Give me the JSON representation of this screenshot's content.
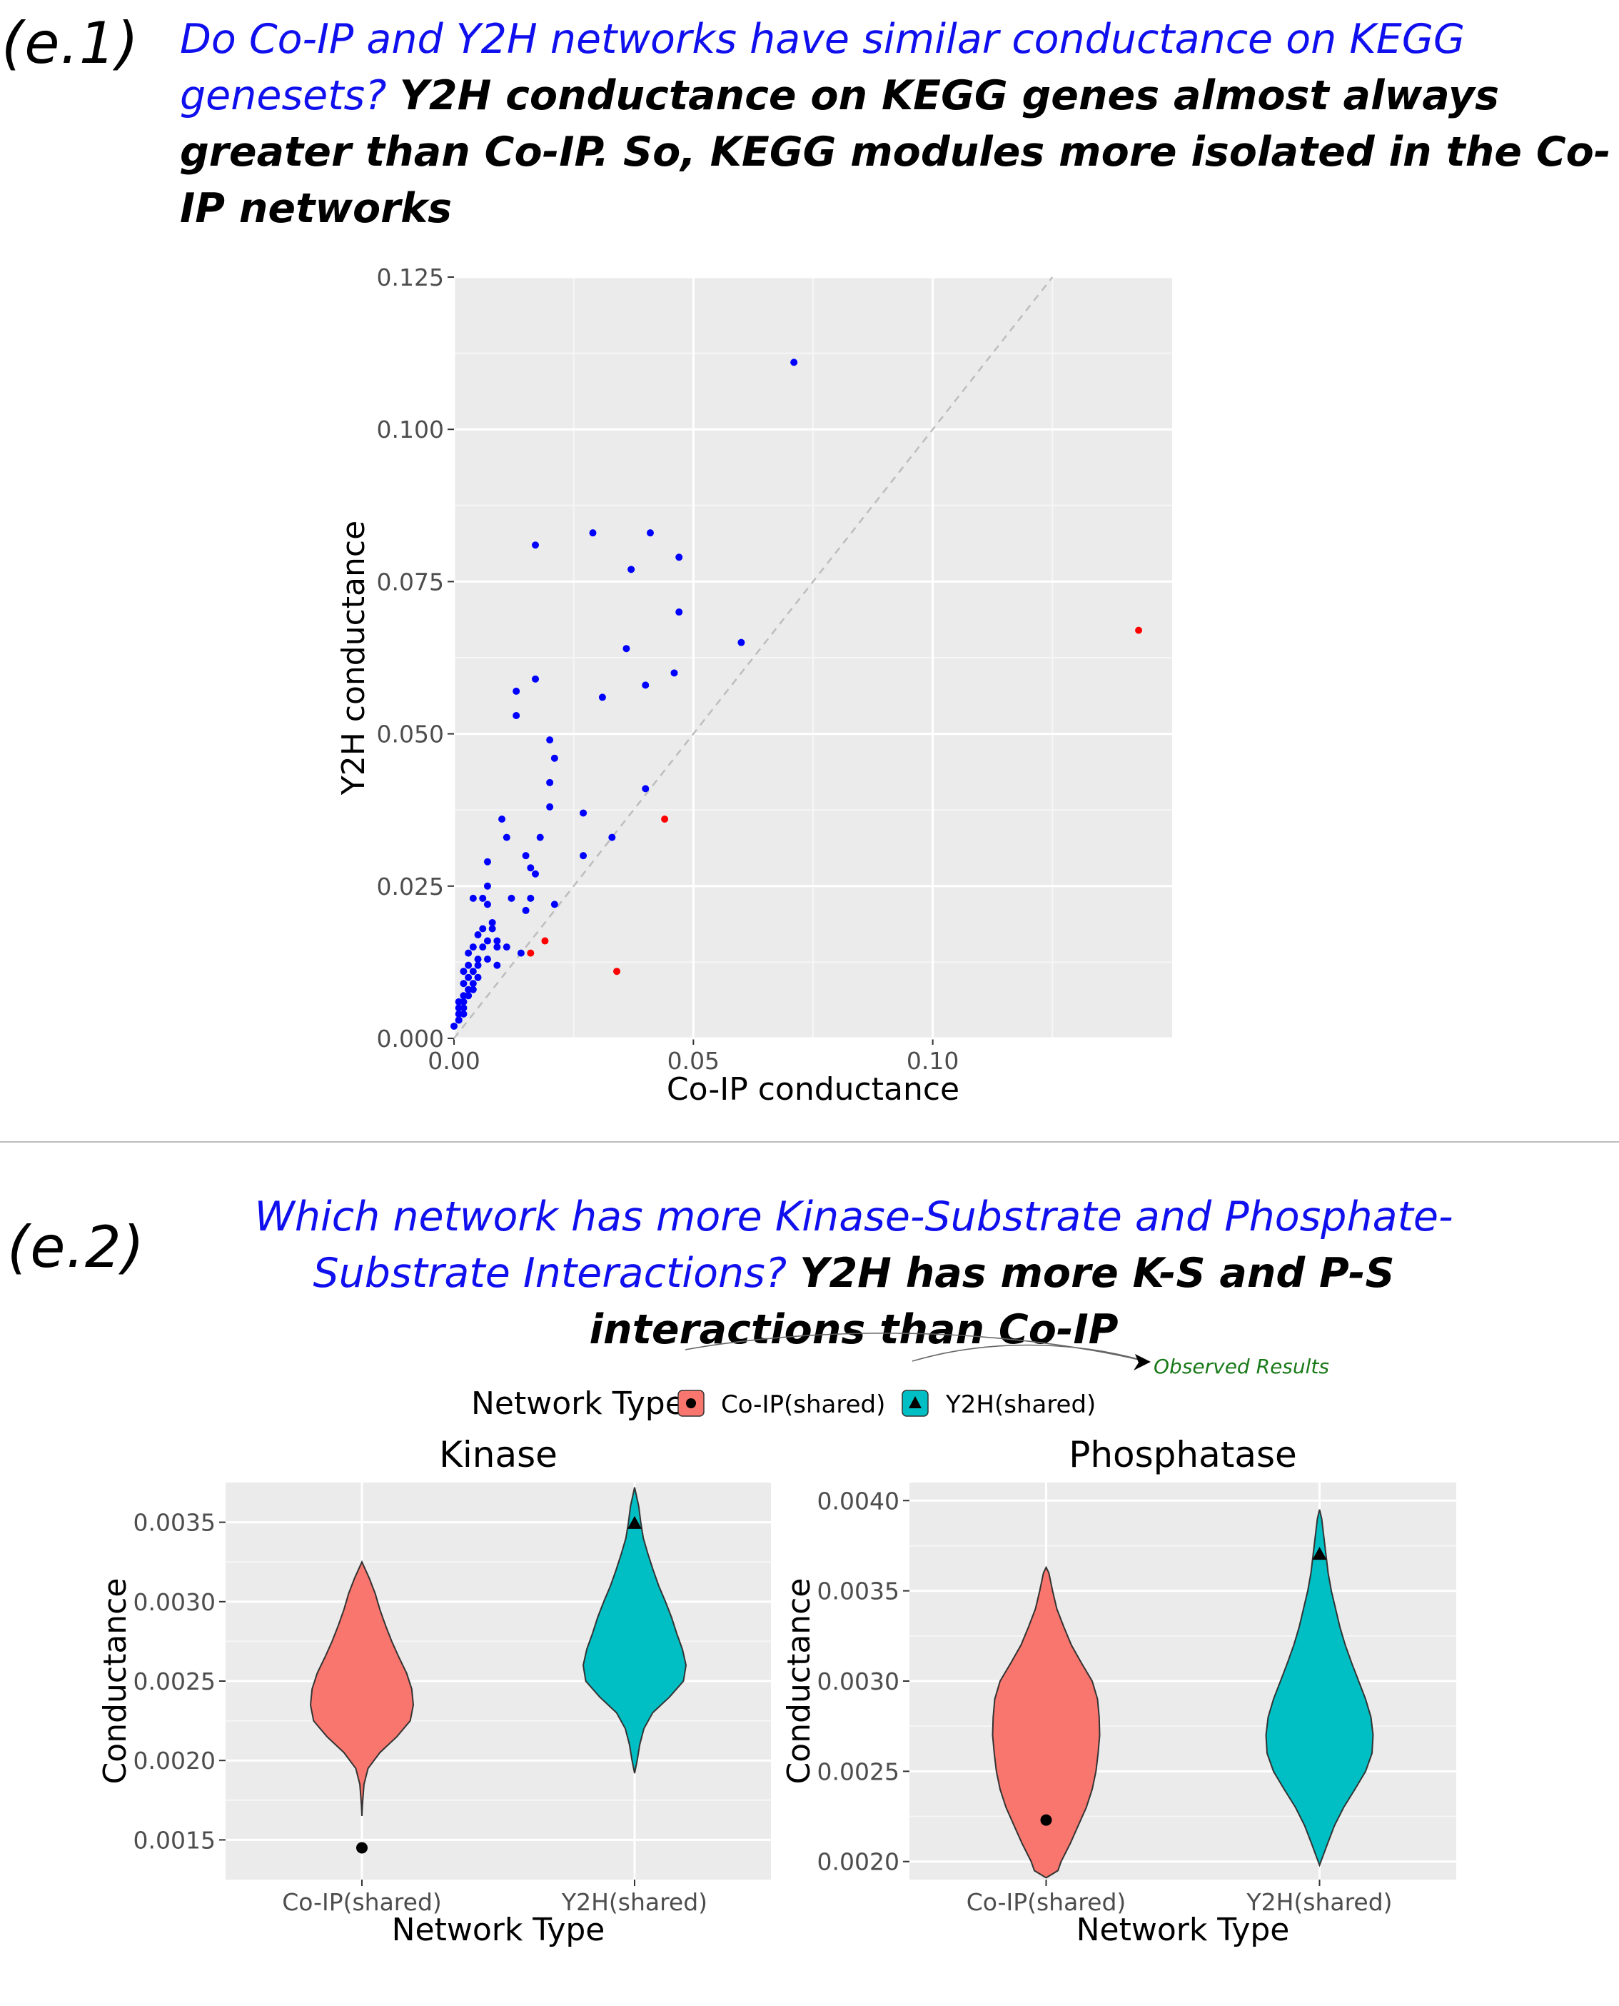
{
  "e1": {
    "label": "(e.1)",
    "question": "Do  Co-IP and Y2H networks have similar conductance on KEGG genesets?",
    "answer": "Y2H conductance on KEGG genes almost always greater than Co-IP. So, KEGG modules  more  isolated in the Co-IP networks"
  },
  "e2": {
    "label": "(e.2)",
    "question": "Which network has more Kinase-Substrate and Phosphate-Substrate Interactions?",
    "answer": "Y2H has more K-S and P-S interactions than Co-IP",
    "annotation": "Observed Results",
    "legend": {
      "title": "Network Type",
      "items": [
        {
          "label": "Co-IP(shared)",
          "color": "#f8766d",
          "marker": "circle"
        },
        {
          "label": "Y2H(shared)",
          "color": "#00bfc4",
          "marker": "triangle"
        }
      ]
    }
  },
  "colors": {
    "above": "#0000ff",
    "below": "#ff0000",
    "panel_bg": "#ebebeb",
    "diag": "#bdbdbd"
  },
  "chart_data": [
    {
      "type": "scatter",
      "xlabel": "Co-IP conductance",
      "ylabel": "Y2H conductance",
      "xlim": [
        0,
        0.15
      ],
      "ylim": [
        0,
        0.125
      ],
      "xticks": [
        0.0,
        0.05,
        0.1
      ],
      "xtick_labels": [
        "0.00",
        "0.05",
        "0.10"
      ],
      "yticks": [
        0.0,
        0.025,
        0.05,
        0.075,
        0.1,
        0.125
      ],
      "ytick_labels": [
        "0.000",
        "0.025",
        "0.050",
        "0.075",
        "0.100",
        "0.125"
      ],
      "reference_line": "y = x",
      "points": [
        [
          0.071,
          0.111,
          "blue"
        ],
        [
          0.143,
          0.067,
          "red"
        ],
        [
          0.029,
          0.083,
          "blue"
        ],
        [
          0.041,
          0.083,
          "blue"
        ],
        [
          0.017,
          0.081,
          "blue"
        ],
        [
          0.047,
          0.079,
          "blue"
        ],
        [
          0.037,
          0.077,
          "blue"
        ],
        [
          0.047,
          0.07,
          "blue"
        ],
        [
          0.06,
          0.065,
          "blue"
        ],
        [
          0.036,
          0.064,
          "blue"
        ],
        [
          0.046,
          0.06,
          "blue"
        ],
        [
          0.017,
          0.059,
          "blue"
        ],
        [
          0.04,
          0.058,
          "blue"
        ],
        [
          0.013,
          0.057,
          "blue"
        ],
        [
          0.031,
          0.056,
          "blue"
        ],
        [
          0.013,
          0.053,
          "blue"
        ],
        [
          0.02,
          0.049,
          "blue"
        ],
        [
          0.021,
          0.046,
          "blue"
        ],
        [
          0.02,
          0.042,
          "blue"
        ],
        [
          0.04,
          0.041,
          "blue"
        ],
        [
          0.02,
          0.038,
          "blue"
        ],
        [
          0.027,
          0.037,
          "blue"
        ],
        [
          0.044,
          0.036,
          "red"
        ],
        [
          0.01,
          0.036,
          "blue"
        ],
        [
          0.033,
          0.033,
          "blue"
        ],
        [
          0.011,
          0.033,
          "blue"
        ],
        [
          0.018,
          0.033,
          "blue"
        ],
        [
          0.027,
          0.03,
          "blue"
        ],
        [
          0.015,
          0.03,
          "blue"
        ],
        [
          0.007,
          0.029,
          "blue"
        ],
        [
          0.016,
          0.028,
          "blue"
        ],
        [
          0.017,
          0.027,
          "blue"
        ],
        [
          0.007,
          0.025,
          "blue"
        ],
        [
          0.006,
          0.023,
          "blue"
        ],
        [
          0.004,
          0.023,
          "blue"
        ],
        [
          0.012,
          0.023,
          "blue"
        ],
        [
          0.016,
          0.023,
          "blue"
        ],
        [
          0.021,
          0.022,
          "blue"
        ],
        [
          0.007,
          0.022,
          "blue"
        ],
        [
          0.015,
          0.021,
          "blue"
        ],
        [
          0.008,
          0.019,
          "blue"
        ],
        [
          0.008,
          0.018,
          "blue"
        ],
        [
          0.006,
          0.018,
          "blue"
        ],
        [
          0.005,
          0.017,
          "blue"
        ],
        [
          0.007,
          0.016,
          "blue"
        ],
        [
          0.009,
          0.016,
          "blue"
        ],
        [
          0.019,
          0.016,
          "red"
        ],
        [
          0.011,
          0.015,
          "blue"
        ],
        [
          0.004,
          0.015,
          "blue"
        ],
        [
          0.006,
          0.015,
          "blue"
        ],
        [
          0.009,
          0.015,
          "blue"
        ],
        [
          0.014,
          0.014,
          "blue"
        ],
        [
          0.016,
          0.014,
          "red"
        ],
        [
          0.003,
          0.014,
          "blue"
        ],
        [
          0.005,
          0.013,
          "blue"
        ],
        [
          0.007,
          0.013,
          "blue"
        ],
        [
          0.003,
          0.012,
          "blue"
        ],
        [
          0.005,
          0.012,
          "blue"
        ],
        [
          0.009,
          0.012,
          "blue"
        ],
        [
          0.002,
          0.011,
          "blue"
        ],
        [
          0.004,
          0.011,
          "blue"
        ],
        [
          0.034,
          0.011,
          "red"
        ],
        [
          0.003,
          0.01,
          "blue"
        ],
        [
          0.005,
          0.01,
          "blue"
        ],
        [
          0.002,
          0.009,
          "blue"
        ],
        [
          0.004,
          0.009,
          "blue"
        ],
        [
          0.003,
          0.008,
          "blue"
        ],
        [
          0.004,
          0.008,
          "blue"
        ],
        [
          0.002,
          0.007,
          "blue"
        ],
        [
          0.003,
          0.007,
          "blue"
        ],
        [
          0.002,
          0.006,
          "blue"
        ],
        [
          0.001,
          0.006,
          "blue"
        ],
        [
          0.002,
          0.005,
          "blue"
        ],
        [
          0.001,
          0.005,
          "blue"
        ],
        [
          0.001,
          0.004,
          "blue"
        ],
        [
          0.002,
          0.004,
          "blue"
        ],
        [
          0.001,
          0.003,
          "blue"
        ],
        [
          0.001,
          0.003,
          "blue"
        ],
        [
          0.0,
          0.002,
          "blue"
        ]
      ]
    },
    {
      "type": "violin",
      "title": "Kinase",
      "xlabel": "Network Type",
      "ylabel": "Conductance",
      "categories": [
        "Co-IP(shared)",
        "Y2H(shared)"
      ],
      "ylim": [
        0.00125,
        0.00375
      ],
      "yticks": [
        0.0015,
        0.002,
        0.0025,
        0.003,
        0.0035
      ],
      "ytick_labels": [
        "0.0015",
        "0.0020",
        "0.0025",
        "0.0030",
        "0.0035"
      ],
      "violins": [
        {
          "name": "Co-IP(shared)",
          "min": 0.00165,
          "max": 0.00325,
          "observed": 0.00145,
          "profile": [
            [
              0.00165,
              0.0
            ],
            [
              0.00172,
              0.01
            ],
            [
              0.00185,
              0.04
            ],
            [
              0.00195,
              0.12
            ],
            [
              0.00205,
              0.35
            ],
            [
              0.00215,
              0.68
            ],
            [
              0.00225,
              0.94
            ],
            [
              0.00235,
              1.0
            ],
            [
              0.00245,
              0.97
            ],
            [
              0.00255,
              0.87
            ],
            [
              0.00265,
              0.72
            ],
            [
              0.00275,
              0.58
            ],
            [
              0.00285,
              0.46
            ],
            [
              0.00295,
              0.35
            ],
            [
              0.00305,
              0.26
            ],
            [
              0.00315,
              0.14
            ],
            [
              0.00325,
              0.0
            ]
          ]
        },
        {
          "name": "Y2H(shared)",
          "min": 0.00192,
          "max": 0.00372,
          "observed": 0.00349,
          "profile": [
            [
              0.00192,
              0.0
            ],
            [
              0.002,
              0.05
            ],
            [
              0.0021,
              0.1
            ],
            [
              0.0022,
              0.18
            ],
            [
              0.0023,
              0.35
            ],
            [
              0.0024,
              0.68
            ],
            [
              0.0025,
              0.95
            ],
            [
              0.0026,
              1.0
            ],
            [
              0.0027,
              0.93
            ],
            [
              0.0028,
              0.82
            ],
            [
              0.0029,
              0.72
            ],
            [
              0.003,
              0.6
            ],
            [
              0.0031,
              0.47
            ],
            [
              0.0032,
              0.36
            ],
            [
              0.0033,
              0.26
            ],
            [
              0.0034,
              0.17
            ],
            [
              0.0035,
              0.12
            ],
            [
              0.0036,
              0.08
            ],
            [
              0.00372,
              0.0
            ]
          ]
        }
      ]
    },
    {
      "type": "violin",
      "title": "Phosphatase",
      "xlabel": "Network Type",
      "ylabel": "Conductance",
      "categories": [
        "Co-IP(shared)",
        "Y2H(shared)"
      ],
      "ylim": [
        0.0019,
        0.0041
      ],
      "yticks": [
        0.002,
        0.0025,
        0.003,
        0.0035,
        0.004
      ],
      "ytick_labels": [
        "0.0020",
        "0.0025",
        "0.0030",
        "0.0035",
        "0.0040"
      ],
      "violins": [
        {
          "name": "Co-IP(shared)",
          "min": 0.00191,
          "max": 0.00363,
          "observed": 0.00223,
          "profile": [
            [
              0.00191,
              0.0
            ],
            [
              0.00195,
              0.22
            ],
            [
              0.002,
              0.28
            ],
            [
              0.0021,
              0.45
            ],
            [
              0.0022,
              0.6
            ],
            [
              0.0023,
              0.75
            ],
            [
              0.0024,
              0.86
            ],
            [
              0.0025,
              0.93
            ],
            [
              0.0026,
              0.97
            ],
            [
              0.0027,
              1.0
            ],
            [
              0.0028,
              0.99
            ],
            [
              0.0029,
              0.96
            ],
            [
              0.003,
              0.86
            ],
            [
              0.0031,
              0.66
            ],
            [
              0.0032,
              0.47
            ],
            [
              0.0033,
              0.33
            ],
            [
              0.0034,
              0.2
            ],
            [
              0.0035,
              0.12
            ],
            [
              0.0036,
              0.05
            ],
            [
              0.00363,
              0.0
            ]
          ]
        },
        {
          "name": "Y2H(shared)",
          "min": 0.00198,
          "max": 0.00395,
          "observed": 0.0037,
          "profile": [
            [
              0.00198,
              0.0
            ],
            [
              0.0021,
              0.15
            ],
            [
              0.0022,
              0.28
            ],
            [
              0.0023,
              0.45
            ],
            [
              0.0024,
              0.66
            ],
            [
              0.0025,
              0.86
            ],
            [
              0.0026,
              0.98
            ],
            [
              0.0027,
              1.0
            ],
            [
              0.0028,
              0.96
            ],
            [
              0.0029,
              0.86
            ],
            [
              0.003,
              0.73
            ],
            [
              0.0031,
              0.6
            ],
            [
              0.0032,
              0.48
            ],
            [
              0.0033,
              0.38
            ],
            [
              0.0034,
              0.3
            ],
            [
              0.0035,
              0.22
            ],
            [
              0.0036,
              0.16
            ],
            [
              0.0037,
              0.12
            ],
            [
              0.0038,
              0.08
            ],
            [
              0.0039,
              0.04
            ],
            [
              0.00395,
              0.0
            ]
          ]
        }
      ]
    }
  ]
}
